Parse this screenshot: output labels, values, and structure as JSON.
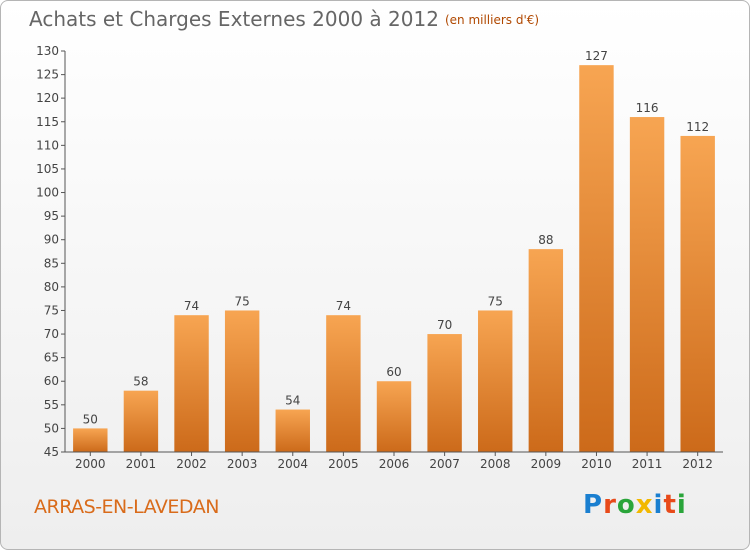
{
  "header": {
    "title": "Achats et Charges Externes 2000 à 2012",
    "unit": "(en milliers d'€)"
  },
  "footer": {
    "commune": "ARRAS-EN-LAVEDAN",
    "logo_letters": [
      {
        "ch": "P",
        "color": "#1a7fd0"
      },
      {
        "ch": "r",
        "color": "#e84a1a"
      },
      {
        "ch": "o",
        "color": "#2aa53a"
      },
      {
        "ch": "x",
        "color": "#f2b800"
      },
      {
        "ch": "i",
        "color": "#1a7fd0"
      },
      {
        "ch": "t",
        "color": "#e84a1a"
      },
      {
        "ch": "i",
        "color": "#2aa53a"
      }
    ]
  },
  "chart_data": {
    "type": "bar",
    "title": "Achats et Charges Externes 2000 à 2012",
    "subtitle": "(en milliers d'€)",
    "xlabel": "",
    "ylabel": "",
    "categories": [
      "2000",
      "2001",
      "2002",
      "2003",
      "2004",
      "2005",
      "2006",
      "2007",
      "2008",
      "2009",
      "2010",
      "2011",
      "2012"
    ],
    "values": [
      50,
      58,
      74,
      75,
      54,
      74,
      60,
      70,
      75,
      88,
      127,
      116,
      112
    ],
    "ylim": [
      45,
      130
    ],
    "ytick_step": 5,
    "grid": false,
    "bar_color_light": "#f7a552",
    "bar_color_dark": "#cc6a1a",
    "axis_color": "#555555"
  }
}
